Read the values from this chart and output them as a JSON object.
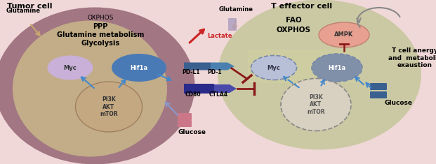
{
  "bg_color": "#f0d8d8",
  "tumor_cell_outer_color": "#9b6b7a",
  "tumor_cell_inner_color": "#c8b88a",
  "t_effector_outer_color": "#c8c8a0",
  "pi3k_oval_color_tumor": "#c4a882",
  "pi3k_oval_color_t": "#d8d0c0",
  "myc_color_tumor": "#c8b0d8",
  "hif1a_color_tumor": "#4a7ab5",
  "myc_color_t": "#b8c0d8",
  "hif1a_color_t": "#8090a8",
  "ampk_color": "#e8a090",
  "arrow_blue": "#4488cc",
  "arrow_red": "#cc2222",
  "inhibit_color": "#8b1a1a",
  "cd80_ctla4_color": "#3a3a8a",
  "pdl1_pd1_color": "#3a6090",
  "glucose_transporter_color": "#3a6090",
  "glucose_transporter_tumor_color": "#cc7788",
  "title_text": "Tumor cell",
  "t_effector_title": "T effector cell",
  "text_glycolysis": "Glycolysis",
  "text_glutamine_met": "Glutamine metabolism",
  "text_ppp": "PPP",
  "text_oxphos_tumor": "OXPHOS",
  "text_oxphos_t": "OXPHOS",
  "text_fao": "FAO",
  "text_lactate": "Lactate",
  "text_glutamine_label_left": "Glutamine",
  "text_glutamine_label_bottom": "Glutamine",
  "text_glucose_top": "Glucose",
  "text_glucose_right": "Glucose",
  "text_t_anergy": "T cell anergy\nand  metabolic\nexaustion",
  "text_ampk": "AMPK",
  "text_myc": "Myc",
  "text_hif1a": "Hif1a",
  "text_pi3k": "PI3K\nAKT\nmTOR",
  "text_cd80": "CD80",
  "text_ctla4": "CTLA4",
  "text_pdl1": "PD-L1",
  "text_pd1": "PD-1",
  "rect_t_color": "#d0d0a0"
}
